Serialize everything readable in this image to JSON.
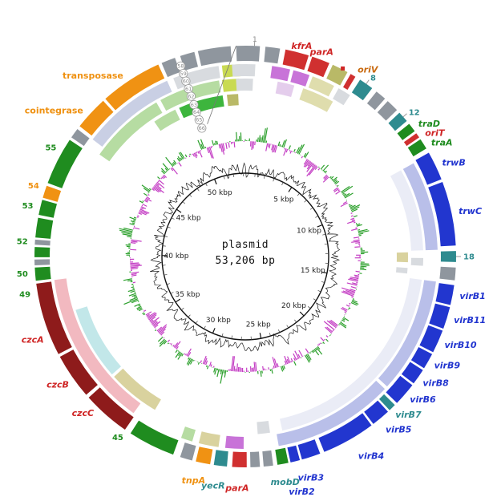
{
  "chart_data": {
    "type": "circular_genome_map",
    "center": {
      "title": "plasmid",
      "subtitle": "53,206 bp"
    },
    "total_kbp": 53.206,
    "label_radius": 272,
    "axis": {
      "radius": 104,
      "label_radius": 86,
      "major_interval_kbp": 5,
      "minor_interval_kbp": 1,
      "tick_labels": [
        "5 kbp",
        "10 kbp",
        "15 kbp",
        "20 kbp",
        "25 kbp",
        "30 kbp",
        "35 kbp",
        "40 kbp",
        "45 kbp",
        "50 kbp"
      ]
    },
    "plots": {
      "gc_content": {
        "name": "GC content",
        "color": "#1c1c1c",
        "baseline_r": 112,
        "amplitude": 11,
        "samples": 520,
        "seed": 13
      },
      "gc_skew": {
        "name": "GC skew",
        "positive_color": "#2ca02c",
        "negative_color": "#c43fc4",
        "baseline_r": 144,
        "amplitude": 19,
        "samples": 520,
        "seed": 47
      }
    },
    "rings": [
      [
        244,
        263
      ],
      [
        225,
        240
      ],
      [
        207,
        222
      ],
      [
        189,
        203
      ]
    ],
    "palette": {
      "gray": "#8f969e",
      "lightgray": "#d8dbdf",
      "red": "#d03030",
      "darkred": "#8e1b1b",
      "blue": "#2236cf",
      "teal": "#2e8b8f",
      "green": "#1f8c1f",
      "brightgreen": "#3db53d",
      "lightgreen": "#b6dca2",
      "orange": "#f09213",
      "olive": "#b9b967",
      "paleolive": "#dfddad",
      "violet": "#c873d8",
      "paleviolet": "#e4cdec",
      "lavender": "#b9bfe9",
      "palelav": "#eaecf6",
      "pink": "#f2b9c0",
      "lightcyan": "#c2e7e9",
      "khaki": "#d9d29e",
      "paleblue": "#c9cfe4",
      "yellowgreen": "#c9da52"
    },
    "label_colors": {
      "red": "#cf2525",
      "green": "#1f8c1f",
      "blue": "#2134cf",
      "teal": "#2e8b8f",
      "orange": "#ef9111",
      "rust": "#c96a10",
      "gray": "#8a8a8a"
    },
    "segments": [
      [
        0,
        347,
        356,
        "gray"
      ],
      [
        0,
        357.5,
        4,
        "gray"
      ],
      [
        0,
        5.5,
        9.5,
        "gray"
      ],
      [
        0,
        11,
        17.5,
        "red"
      ],
      [
        0,
        18.5,
        23.5,
        "red"
      ],
      [
        0,
        24.5,
        29,
        "olive"
      ],
      [
        0,
        30,
        31.5,
        "red"
      ],
      [
        0,
        33,
        37,
        "teal"
      ],
      [
        0,
        38.5,
        41.5,
        "gray"
      ],
      [
        0,
        42.5,
        46,
        "gray"
      ],
      [
        0,
        47,
        50,
        "teal"
      ],
      [
        0,
        51,
        53.5,
        "green"
      ],
      [
        0,
        54.2,
        55.6,
        "red"
      ],
      [
        0,
        56.2,
        59.2,
        "green"
      ],
      [
        0,
        60.5,
        68.5,
        "blue"
      ],
      [
        0,
        69.3,
        87,
        "blue"
      ],
      [
        0,
        88.5,
        91.5,
        "teal"
      ],
      [
        0,
        93,
        96.5,
        "gray"
      ],
      [
        0,
        97.8,
        103.3,
        "blue"
      ],
      [
        0,
        103.9,
        110,
        "blue"
      ],
      [
        0,
        110.6,
        117,
        "blue"
      ],
      [
        0,
        117.6,
        122,
        "blue"
      ],
      [
        0,
        122.6,
        127,
        "blue"
      ],
      [
        0,
        127.6,
        134,
        "blue"
      ],
      [
        0,
        134.8,
        136.8,
        "teal"
      ],
      [
        0,
        137.4,
        142.6,
        "blue"
      ],
      [
        0,
        143.2,
        158,
        "blue"
      ],
      [
        0,
        159.2,
        164.4,
        "blue"
      ],
      [
        0,
        165,
        167.6,
        "blue"
      ],
      [
        0,
        168.2,
        171.2,
        "green"
      ],
      [
        0,
        172.4,
        175,
        "gray"
      ],
      [
        0,
        176,
        178.6,
        "gray"
      ],
      [
        0,
        179.6,
        183.6,
        "red"
      ],
      [
        0,
        185,
        188.6,
        "teal"
      ],
      [
        0,
        189.6,
        193.6,
        "orange"
      ],
      [
        0,
        194.6,
        198,
        "gray"
      ],
      [
        0,
        200,
        213,
        "green"
      ],
      [
        0,
        214.8,
        228,
        "darkred"
      ],
      [
        0,
        229,
        241.6,
        "darkred"
      ],
      [
        0,
        242.4,
        262.6,
        "darkred"
      ],
      [
        0,
        263.4,
        267,
        "green"
      ],
      [
        0,
        267.6,
        269.2,
        "gray"
      ],
      [
        0,
        269.8,
        272.6,
        "green"
      ],
      [
        0,
        273.2,
        274.6,
        "gray"
      ],
      [
        0,
        275.2,
        280.6,
        "green"
      ],
      [
        0,
        281.4,
        285.6,
        "green"
      ],
      [
        0,
        286.2,
        289.6,
        "orange"
      ],
      [
        0,
        290.4,
        303.6,
        "green"
      ],
      [
        0,
        304.4,
        307.2,
        "gray"
      ],
      [
        0,
        308.2,
        317.6,
        "orange"
      ],
      [
        0,
        318.4,
        335.6,
        "orange"
      ],
      [
        0,
        336.6,
        340.5,
        "gray"
      ],
      [
        0,
        342,
        346,
        "gray"
      ],
      [
        1,
        8,
        13.5,
        "violet"
      ],
      [
        1,
        14.5,
        19.5,
        "violet"
      ],
      [
        1,
        20.5,
        27.5,
        "paleolive"
      ],
      [
        1,
        29,
        33,
        "lightgray"
      ],
      [
        1,
        61,
        88,
        "lavender"
      ],
      [
        1,
        97.5,
        132.5,
        "lavender"
      ],
      [
        1,
        133.5,
        170,
        "lavender"
      ],
      [
        1,
        180.5,
        186,
        "violet"
      ],
      [
        1,
        188,
        194,
        "khaki"
      ],
      [
        1,
        196,
        199.5,
        "lightgreen"
      ],
      [
        1,
        215.5,
        263,
        "pink"
      ],
      [
        1,
        307.5,
        336,
        "paleblue"
      ],
      [
        1,
        338,
        352,
        "lightgray"
      ],
      [
        1,
        353,
        358.5,
        "yellowgreen"
      ],
      [
        1,
        356,
        3,
        "lightgray"
      ],
      [
        2,
        10.5,
        16,
        "paleviolet"
      ],
      [
        2,
        19,
        29.5,
        "paleolive"
      ],
      [
        2,
        61,
        88,
        "palelav"
      ],
      [
        2,
        90.5,
        93,
        "lightgray"
      ],
      [
        2,
        97.5,
        168,
        "palelav"
      ],
      [
        2,
        172,
        176,
        "lightgray"
      ],
      [
        2,
        210.5,
        227.5,
        "khaki"
      ],
      [
        2,
        228.5,
        252.5,
        "lightcyan"
      ],
      [
        2,
        305,
        330,
        "lightgreen"
      ],
      [
        2,
        331.5,
        351.5,
        "lightgreen"
      ],
      [
        2,
        352.5,
        358,
        "yellowgreen"
      ],
      [
        2,
        357,
        2.5,
        "lightgray"
      ],
      [
        3,
        88.5,
        92,
        "khaki"
      ],
      [
        3,
        94,
        96,
        "lightgray"
      ],
      [
        3,
        326,
        334.5,
        "lightgreen"
      ],
      [
        3,
        336,
        352,
        "brightgreen"
      ],
      [
        3,
        353.5,
        357.5,
        "olive"
      ]
    ],
    "labels": [
      {
        "t": "1",
        "a": 2.5,
        "c": "gray",
        "plain": true,
        "size": 9,
        "tick": true
      },
      {
        "t": "kfrA",
        "a": 15,
        "c": "red",
        "i": true
      },
      {
        "t": "parA",
        "a": 20.5,
        "c": "red",
        "i": true
      },
      {
        "t": "oriV",
        "a": 31,
        "c": "rust",
        "i": true,
        "swatch": "red"
      },
      {
        "t": "8",
        "a": 35,
        "c": "teal",
        "b": true,
        "tick": true
      },
      {
        "t": "12",
        "a": 48.5,
        "c": "teal",
        "b": true,
        "tick": true
      },
      {
        "t": "traD",
        "a": 52.5,
        "c": "green",
        "i": true
      },
      {
        "t": "oriT",
        "a": 55.5,
        "c": "red",
        "i": true
      },
      {
        "t": "traA",
        "a": 58.5,
        "c": "green",
        "i": true
      },
      {
        "t": "trwB",
        "a": 64.5,
        "c": "blue",
        "i": true
      },
      {
        "t": "trwC",
        "a": 78,
        "c": "blue",
        "i": true
      },
      {
        "t": "18",
        "a": 90,
        "c": "teal",
        "b": true,
        "tick": true
      },
      {
        "t": "virB1",
        "a": 100.5,
        "c": "blue",
        "i": true
      },
      {
        "t": "virB11",
        "a": 107,
        "c": "blue",
        "i": true
      },
      {
        "t": "virB10",
        "a": 114,
        "c": "blue",
        "i": true
      },
      {
        "t": "virB9",
        "a": 120,
        "c": "blue",
        "i": true
      },
      {
        "t": "virB8",
        "a": 125.5,
        "c": "blue",
        "i": true
      },
      {
        "t": "virB6",
        "a": 131,
        "c": "blue",
        "i": true
      },
      {
        "t": "virB7",
        "a": 136.5,
        "c": "teal",
        "i": true
      },
      {
        "t": "virB5",
        "a": 141,
        "c": "blue",
        "i": true,
        "dr": 6
      },
      {
        "t": "virB4",
        "a": 150.5,
        "c": "blue",
        "i": true,
        "dr": 14
      },
      {
        "t": "virB3",
        "a": 163.5,
        "c": "blue",
        "i": true,
        "dr": 16
      },
      {
        "t": "virB2",
        "a": 166.5,
        "c": "blue",
        "i": true,
        "dr": 30
      },
      {
        "t": "mobD",
        "a": 170,
        "c": "teal",
        "i": true,
        "dr": 14
      },
      {
        "t": "parA",
        "a": 182,
        "c": "red",
        "i": true,
        "dr": 17
      },
      {
        "t": "yecR",
        "a": 188,
        "c": "teal",
        "i": true,
        "dr": 17
      },
      {
        "t": "tnpA",
        "a": 193,
        "c": "orange",
        "i": true,
        "dr": 15
      },
      {
        "t": "45",
        "a": 214,
        "c": "green",
        "b": true
      },
      {
        "t": "czcC",
        "a": 224,
        "c": "red",
        "i": true
      },
      {
        "t": "czcB",
        "a": 234,
        "c": "red",
        "i": true
      },
      {
        "t": "czcA",
        "a": 247.5,
        "c": "red",
        "i": true
      },
      {
        "t": "49",
        "a": 260,
        "c": "green",
        "b": true
      },
      {
        "t": "50",
        "a": 265.5,
        "c": "green",
        "b": true
      },
      {
        "t": "52",
        "a": 274,
        "c": "green",
        "b": true
      },
      {
        "t": "53",
        "a": 283.5,
        "c": "green",
        "b": true
      },
      {
        "t": "54",
        "a": 289,
        "c": "orange",
        "b": true
      },
      {
        "t": "55",
        "a": 300,
        "c": "green",
        "b": true
      },
      {
        "t": "cointegrase",
        "a": 312,
        "c": "orange"
      },
      {
        "t": "transposase",
        "a": 326,
        "c": "orange"
      }
    ],
    "markers": {
      "angle": 341.3,
      "circle_r": 5.2,
      "radii": [
        251,
        241,
        231,
        221,
        211,
        200,
        190,
        180,
        169
      ],
      "values": [
        "58",
        "59",
        "60",
        "61",
        "62",
        "63",
        "64",
        "65",
        "66"
      ]
    },
    "start_line": {
      "a1": 357.5,
      "r1": 263,
      "a2": 344,
      "r2": 172
    }
  }
}
